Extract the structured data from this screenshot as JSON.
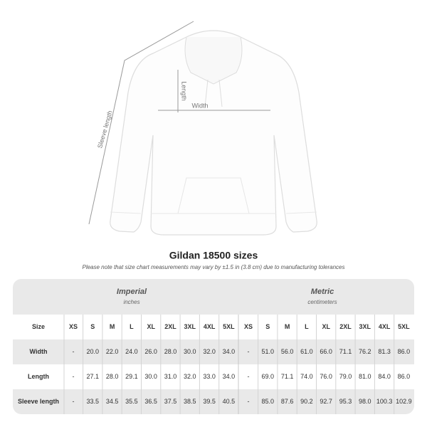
{
  "diagram": {
    "labels": {
      "length": "Length",
      "width": "Width",
      "sleeve": "Sleeve length"
    }
  },
  "header": {
    "title": "Gildan 18500 sizes",
    "note": "Please note that size chart measurements may vary by ±1.5 in (3.8 cm) due to manufacturing tolerances"
  },
  "table": {
    "groups": [
      {
        "title": "Imperial",
        "unit": "inches"
      },
      {
        "title": "Metric",
        "unit": "centimeters"
      }
    ],
    "columns": [
      "Size",
      "XS",
      "S",
      "M",
      "L",
      "XL",
      "2XL",
      "3XL",
      "4XL",
      "5XL",
      "XS",
      "S",
      "M",
      "L",
      "XL",
      "2XL",
      "3XL",
      "4XL",
      "5XL"
    ],
    "rows": [
      [
        "Width",
        "-",
        "20.0",
        "22.0",
        "24.0",
        "26.0",
        "28.0",
        "30.0",
        "32.0",
        "34.0",
        "-",
        "51.0",
        "56.0",
        "61.0",
        "66.0",
        "71.1",
        "76.2",
        "81.3",
        "86.0"
      ],
      [
        "Length",
        "-",
        "27.1",
        "28.0",
        "29.1",
        "30.0",
        "31.0",
        "32.0",
        "33.0",
        "34.0",
        "-",
        "69.0",
        "71.1",
        "74.0",
        "76.0",
        "79.0",
        "81.0",
        "84.0",
        "86.0"
      ],
      [
        "Sleeve length",
        "-",
        "33.5",
        "34.5",
        "35.5",
        "36.5",
        "37.5",
        "38.5",
        "39.5",
        "40.5",
        "-",
        "85.0",
        "87.6",
        "90.2",
        "92.7",
        "95.3",
        "98.0",
        "100.3",
        "102.9"
      ]
    ]
  }
}
